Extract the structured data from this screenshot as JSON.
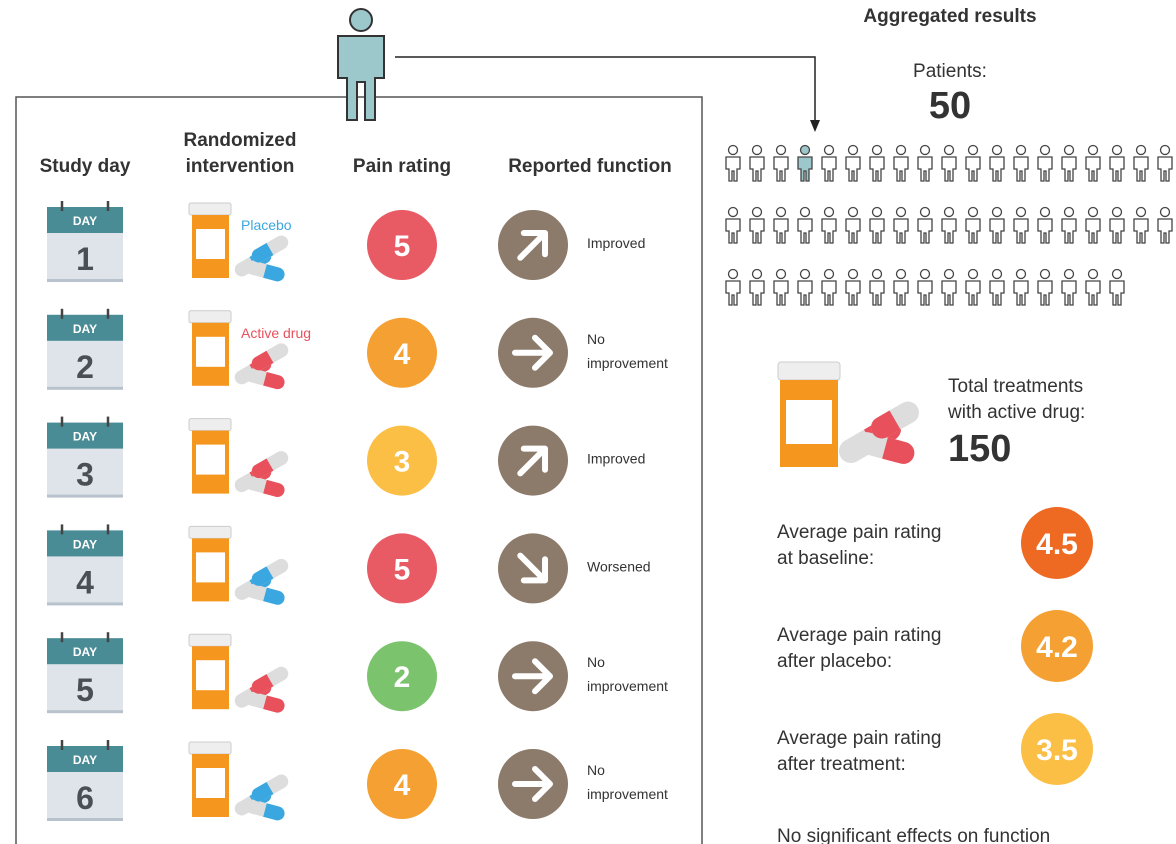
{
  "headers": {
    "study_day": "Study day",
    "intervention": [
      "Randomized",
      "intervention"
    ],
    "pain_rating": "Pain rating",
    "function": "Reported function"
  },
  "calendar_label": "DAY",
  "rows": [
    {
      "day": 1,
      "label": "Placebo",
      "label_color": "#3aa7e0",
      "pill_color": "#3aa7e0",
      "rating": 5,
      "rating_color": "#e85a64",
      "arrow_angle": -45,
      "function": [
        "Improved"
      ]
    },
    {
      "day": 2,
      "label": "Active drug",
      "label_color": "#e8505b",
      "pill_color": "#e8505b",
      "rating": 4,
      "rating_color": "#f5a033",
      "arrow_angle": 0,
      "function": [
        "No",
        "improvement"
      ]
    },
    {
      "day": 3,
      "pill_color": "#e8505b",
      "rating": 3,
      "rating_color": "#fbbf45",
      "arrow_angle": -45,
      "function": [
        "Improved"
      ]
    },
    {
      "day": 4,
      "pill_color": "#3aa7e0",
      "rating": 5,
      "rating_color": "#e85a64",
      "arrow_angle": 45,
      "function": [
        "Worsened"
      ]
    },
    {
      "day": 5,
      "pill_color": "#e8505b",
      "rating": 2,
      "rating_color": "#7cc36e",
      "arrow_angle": 0,
      "function": [
        "No",
        "improvement"
      ]
    },
    {
      "day": 6,
      "pill_color": "#3aa7e0",
      "rating": 4,
      "rating_color": "#f5a033",
      "arrow_angle": 0,
      "function": [
        "No",
        "improvement"
      ]
    }
  ],
  "aggregate": {
    "title": "Aggregated results",
    "patients_label": "Patients:",
    "patients": 50,
    "treatments_label": [
      "Total treatments",
      "with active drug:"
    ],
    "treatments": 150,
    "averages": [
      {
        "label": [
          "Average pain rating",
          "at baseline:"
        ],
        "value": 4.5,
        "color": "#ee6a22"
      },
      {
        "label": [
          "Average pain rating",
          "after placebo:"
        ],
        "value": 4.2,
        "color": "#f5a033"
      },
      {
        "label": [
          "Average pain rating",
          "after treatment:"
        ],
        "value": 3.5,
        "color": "#fbbf45"
      }
    ],
    "note": "No significant effects on function"
  }
}
